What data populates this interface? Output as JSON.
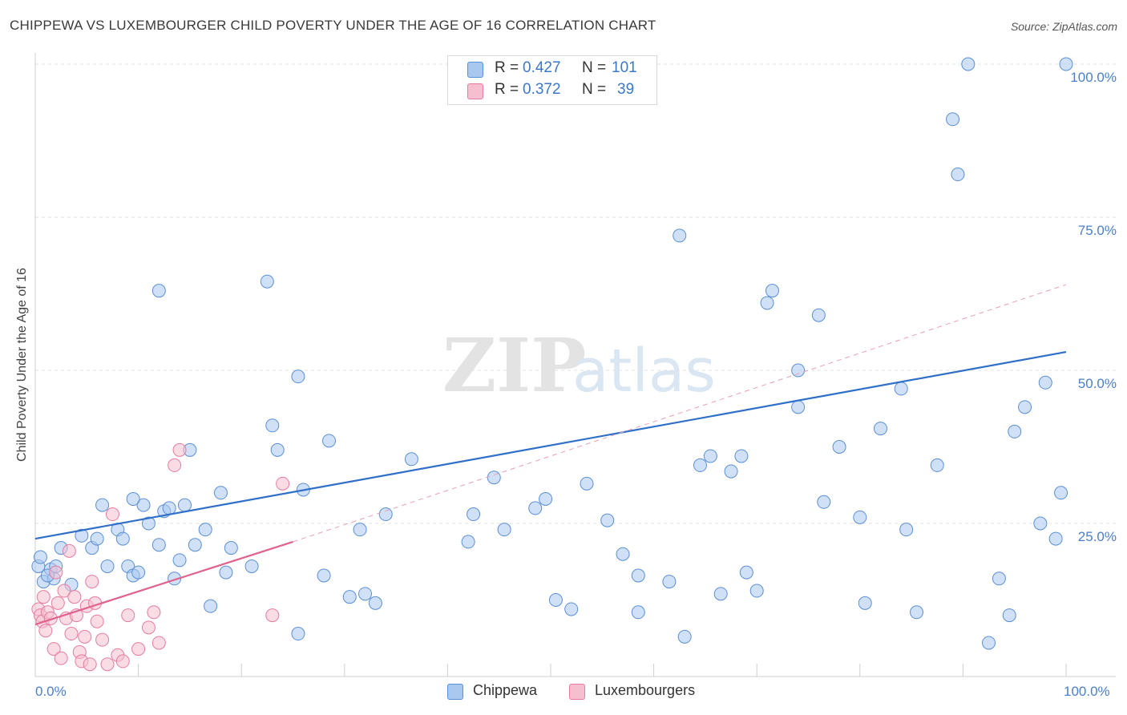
{
  "title": "CHIPPEWA VS LUXEMBOURGER CHILD POVERTY UNDER THE AGE OF 16 CORRELATION CHART",
  "source": "Source: ZipAtlas.com",
  "watermark": {
    "bold": "ZIP",
    "light": "atlas"
  },
  "chart_data": {
    "type": "scatter",
    "title": "CHIPPEWA VS LUXEMBOURGER CHILD POVERTY UNDER THE AGE OF 16 CORRELATION CHART",
    "xlabel": "",
    "ylabel": "Child Poverty Under the Age of 16",
    "xlim": [
      0,
      100
    ],
    "ylim": [
      0,
      100
    ],
    "x_tick_labels": [
      "0.0%",
      "100.0%"
    ],
    "y_tick_labels": [
      "100.0%",
      "75.0%",
      "50.0%",
      "25.0%"
    ],
    "y_ticks": [
      100,
      75,
      50,
      25
    ],
    "grid": true,
    "legend_placement": "top-center",
    "series": [
      {
        "name": "Chippewa",
        "color": "#5b8fd6",
        "fill": "#a9c8f0",
        "stats": {
          "r_label": "R =",
          "r": "0.427",
          "n_label": "N =",
          "n": "101"
        },
        "trend": {
          "x": [
            0,
            100
          ],
          "y": [
            22.5,
            53.0
          ],
          "color": "#2f6fc9"
        },
        "x": [
          0.3,
          0.8,
          1.5,
          1.8,
          2.5,
          3.5,
          4.5,
          5.5,
          6.0,
          6.5,
          7.0,
          8.0,
          8.5,
          9.0,
          9.5,
          10.0,
          10.5,
          11.0,
          12.0,
          12.5,
          13.0,
          13.5,
          14.0,
          14.5,
          15.0,
          15.5,
          16.5,
          17.0,
          18.0,
          19.0,
          21.0,
          25.5,
          26.0,
          28.0,
          30.5,
          31.5,
          32.0,
          33.0,
          34.0,
          36.5,
          42.0,
          42.5,
          44.5,
          45.5,
          48.5,
          49.5,
          50.5,
          52.0,
          53.5,
          55.5,
          57.0,
          58.5,
          58.5,
          61.5,
          63.0,
          64.5,
          65.5,
          66.5,
          67.5,
          68.5,
          69.0,
          70.0,
          74.0,
          76.5,
          78.0,
          80.0,
          80.5,
          84.5,
          85.5,
          87.5,
          92.5,
          93.5,
          94.5,
          95.0,
          99.0,
          23.5,
          28.5,
          22.5,
          12.0,
          18.5,
          25.5,
          9.5,
          23.0,
          62.5,
          71.0,
          71.5,
          76.0,
          82.0,
          84.0,
          74.0,
          96.0,
          97.5,
          99.5,
          89.0,
          89.5,
          98.0,
          90.5,
          100.0,
          0.5,
          1.2,
          2.0
        ],
        "y": [
          18.0,
          15.5,
          17.5,
          16.0,
          21.0,
          15.0,
          23.0,
          21.0,
          22.5,
          28.0,
          18.0,
          24.0,
          22.5,
          18.0,
          16.5,
          17.0,
          28.0,
          25.0,
          21.5,
          27.0,
          27.5,
          16.0,
          19.0,
          28.0,
          37.0,
          21.5,
          24.0,
          11.5,
          30.0,
          21.0,
          18.0,
          7.0,
          30.5,
          16.5,
          13.0,
          24.0,
          13.5,
          12.0,
          26.5,
          35.5,
          22.0,
          26.5,
          32.5,
          24.0,
          27.5,
          29.0,
          12.5,
          11.0,
          31.5,
          25.5,
          20.0,
          10.5,
          16.5,
          15.5,
          6.5,
          34.5,
          36.0,
          13.5,
          33.5,
          36.0,
          17.0,
          14.0,
          44.0,
          28.5,
          37.5,
          26.0,
          12.0,
          24.0,
          10.5,
          34.5,
          5.5,
          16.0,
          10.0,
          40.0,
          22.5,
          37.0,
          38.5,
          64.5,
          63.0,
          17.0,
          49.0,
          29.0,
          41.0,
          72.0,
          61.0,
          63.0,
          59.0,
          40.5,
          47.0,
          50.0,
          44.0,
          25.0,
          30.0,
          91.0,
          82.0,
          48.0,
          100.0,
          100.0,
          19.5,
          16.5,
          18.0
        ]
      },
      {
        "name": "Luxembourgers",
        "color": "#e57ca0",
        "fill": "#f6bfd0",
        "stats": {
          "r_label": "R =",
          "r": "0.372",
          "n_label": "N =",
          "n": "39"
        },
        "trend": {
          "x": [
            0,
            25
          ],
          "y": [
            8.5,
            22.0
          ],
          "color": "#e0628d"
        },
        "trend_extension": {
          "x": [
            25,
            100
          ],
          "y": [
            22.0,
            64.0
          ],
          "color": "#e8a0b8"
        },
        "x": [
          0.3,
          0.5,
          0.7,
          1.0,
          1.2,
          1.5,
          1.8,
          2.0,
          2.2,
          2.5,
          2.8,
          3.0,
          3.3,
          3.5,
          3.8,
          4.0,
          4.3,
          4.5,
          4.8,
          5.0,
          5.3,
          5.5,
          5.8,
          6.0,
          6.5,
          7.0,
          7.5,
          8.0,
          8.5,
          9.0,
          10.0,
          11.0,
          11.5,
          12.0,
          13.5,
          14.0,
          23.0,
          24.0,
          0.8
        ],
        "y": [
          11.0,
          10.0,
          9.0,
          7.5,
          10.5,
          9.5,
          4.5,
          17.0,
          12.0,
          3.0,
          14.0,
          9.5,
          20.5,
          7.0,
          13.0,
          10.0,
          4.0,
          2.5,
          6.5,
          11.5,
          2.0,
          15.5,
          12.0,
          9.0,
          6.0,
          2.0,
          26.5,
          3.5,
          2.5,
          10.0,
          4.5,
          8.0,
          10.5,
          5.5,
          34.5,
          37.0,
          10.0,
          31.5,
          13.0
        ]
      }
    ]
  }
}
